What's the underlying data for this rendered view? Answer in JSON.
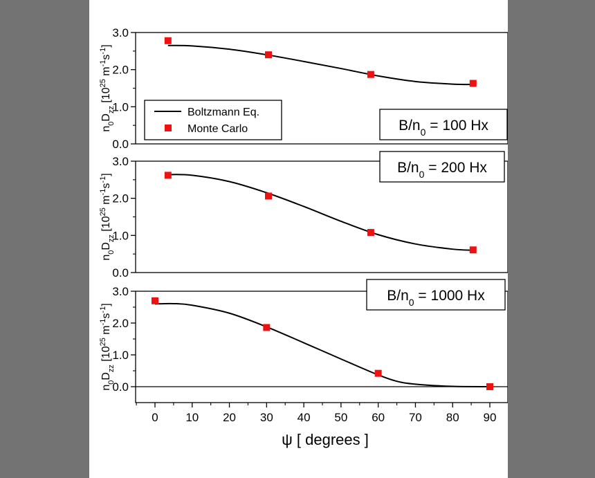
{
  "chart_data": {
    "type": "line",
    "x_axis": {
      "label_symbol": "ψ",
      "label_text": "[ degrees ]",
      "range": [
        -5,
        95
      ],
      "ticks": [
        0,
        10,
        20,
        30,
        40,
        50,
        60,
        70,
        80,
        90
      ],
      "tick_labels": [
        "0",
        "10",
        "20",
        "30",
        "40",
        "50",
        "60",
        "70",
        "80",
        "90"
      ]
    },
    "y_label": {
      "lead": "n",
      "lead_sub": "0",
      "main": "D",
      "main_sub": "zz",
      "unit_open": "[10",
      "unit_exp": "25",
      "unit_m": " m",
      "unit_m_exp": "-1",
      "unit_s": "s",
      "unit_s_exp": "-1",
      "unit_close": "]"
    },
    "legend": {
      "position": "top-left of top panel",
      "entries": [
        {
          "label": "Boltzmann Eq.",
          "type": "line",
          "color": "#000000"
        },
        {
          "label": "Monte Carlo",
          "type": "marker",
          "color": "#ee1111"
        }
      ]
    },
    "panels": [
      {
        "annotation": {
          "prefix": "B/n",
          "sub": "0",
          "suffix": " = 100 Hx"
        },
        "y_range": [
          0,
          3
        ],
        "y_ticks": [
          0,
          1,
          2,
          3
        ],
        "y_tick_labels": [
          "0.0",
          "1.0",
          "2.0",
          "3.0"
        ],
        "zero_line": false,
        "series": [
          {
            "name": "Boltzmann Eq.",
            "type": "line",
            "x": [
              3.5,
              10,
              20,
              30,
              40,
              50,
              60,
              70,
              80,
              85.5
            ],
            "y": [
              2.65,
              2.64,
              2.55,
              2.4,
              2.22,
              2.03,
              1.83,
              1.68,
              1.61,
              1.6
            ]
          },
          {
            "name": "Monte Carlo",
            "type": "scatter",
            "x": [
              3.5,
              30.5,
              58,
              85.5
            ],
            "y": [
              2.78,
              2.4,
              1.87,
              1.63
            ]
          }
        ]
      },
      {
        "annotation": {
          "prefix": "B/n",
          "sub": "0",
          "suffix": " = 200 Hx"
        },
        "y_range": [
          0,
          3
        ],
        "y_ticks": [
          0,
          1,
          2,
          3
        ],
        "y_tick_labels": [
          "0.0",
          "1.0",
          "2.0",
          "3.0"
        ],
        "zero_line": false,
        "series": [
          {
            "name": "Boltzmann Eq.",
            "type": "line",
            "x": [
              3.5,
              10,
              20,
              30,
              40,
              50,
              60,
              70,
              80,
              85.5
            ],
            "y": [
              2.64,
              2.62,
              2.45,
              2.15,
              1.78,
              1.38,
              1.02,
              0.77,
              0.63,
              0.6
            ]
          },
          {
            "name": "Monte Carlo",
            "type": "scatter",
            "x": [
              3.5,
              30.5,
              58,
              85.5
            ],
            "y": [
              2.62,
              2.06,
              1.08,
              0.61
            ]
          }
        ]
      },
      {
        "annotation": {
          "prefix": "B/n",
          "sub": "0",
          "suffix": " = 1000 Hx"
        },
        "y_range": [
          -0.5,
          3
        ],
        "y_ticks": [
          0,
          1,
          2,
          3
        ],
        "y_tick_labels": [
          "0.0",
          "1.0",
          "2.0",
          "3.0"
        ],
        "zero_line": true,
        "series": [
          {
            "name": "Boltzmann Eq.",
            "type": "line",
            "x": [
              0,
              5,
              10,
              20,
              30,
              40,
              50,
              60,
              65,
              70,
              80,
              90
            ],
            "y": [
              2.6,
              2.61,
              2.56,
              2.31,
              1.88,
              1.38,
              0.87,
              0.37,
              0.17,
              0.08,
              0.01,
              0.0
            ]
          },
          {
            "name": "Monte Carlo",
            "type": "scatter",
            "x": [
              0,
              30,
              60,
              90
            ],
            "y": [
              2.7,
              1.86,
              0.42,
              0.0
            ]
          }
        ]
      }
    ],
    "grid": false
  }
}
